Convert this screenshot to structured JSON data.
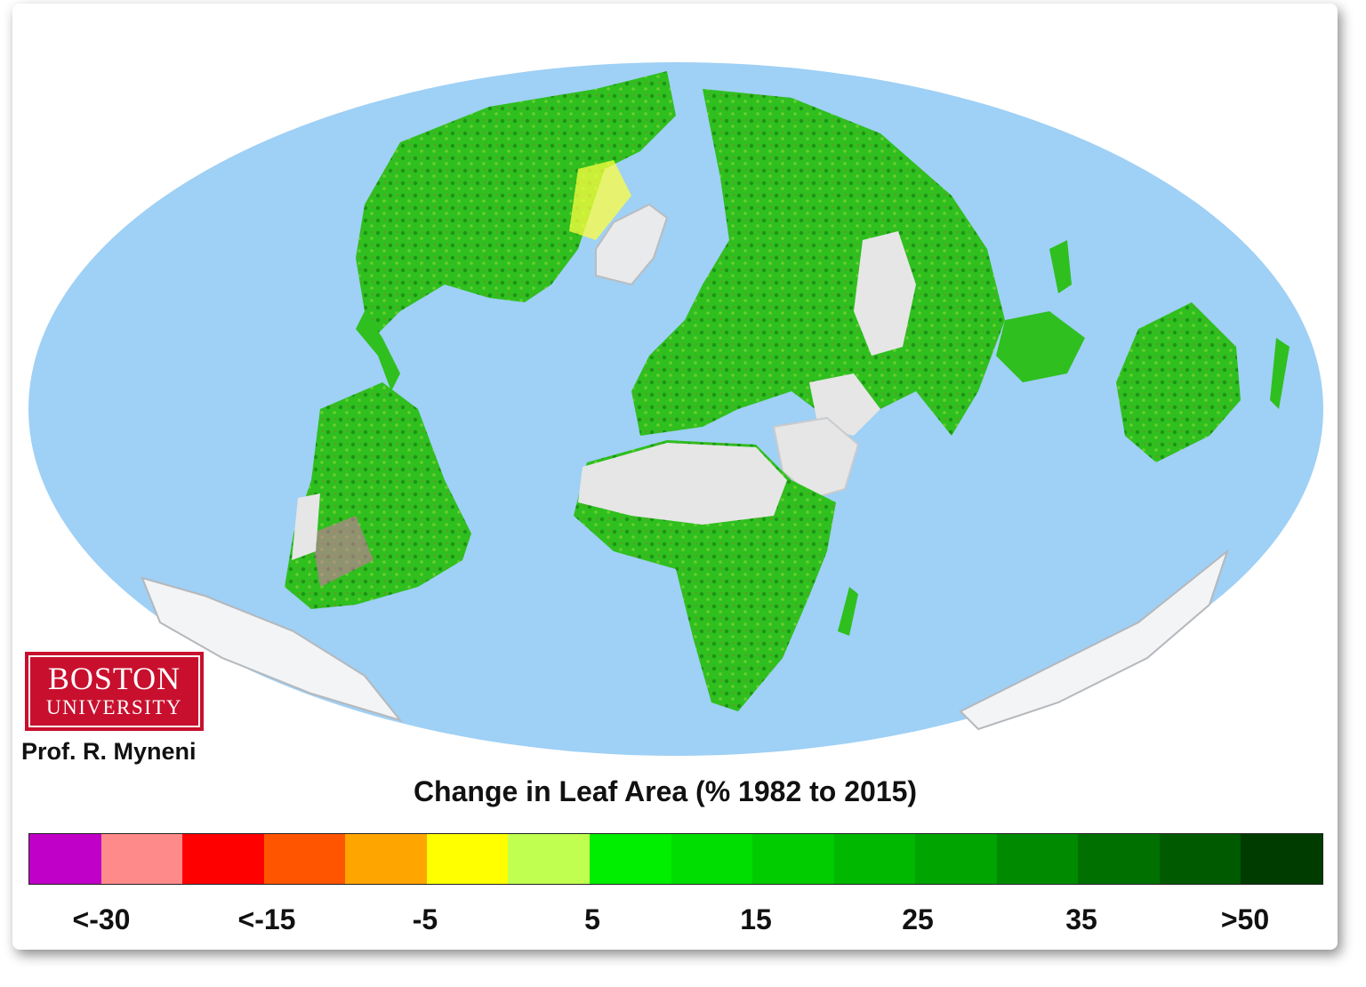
{
  "map": {
    "ocean_color": "#9fd0f5",
    "legend_title": "Change in Leaf Area (% 1982 to 2015)",
    "legend_colors": [
      "#c000c8",
      "#ff8a8a",
      "#ff0000",
      "#ff5500",
      "#ffa500",
      "#ffff00",
      "#c0ff50",
      "#00ee00",
      "#00dd00",
      "#00cc00",
      "#00b800",
      "#00a400",
      "#008a00",
      "#007000",
      "#005a00",
      "#003c00"
    ],
    "legend_ticks": [
      "<-30",
      "<-15",
      "-5",
      "5",
      "15",
      "25",
      "35",
      ">50"
    ],
    "land_colors": {
      "green": "#2fbf1f",
      "dark_green": "#137a10",
      "desert": "#e6e6e6",
      "ice": "#f2f4f6",
      "pink": "#e070b0"
    }
  },
  "branding": {
    "logo_line1": "BOSTON",
    "logo_line2": "UNIVERSITY",
    "logo_color": "#c8102e",
    "credit": "Prof. R. Myneni"
  }
}
